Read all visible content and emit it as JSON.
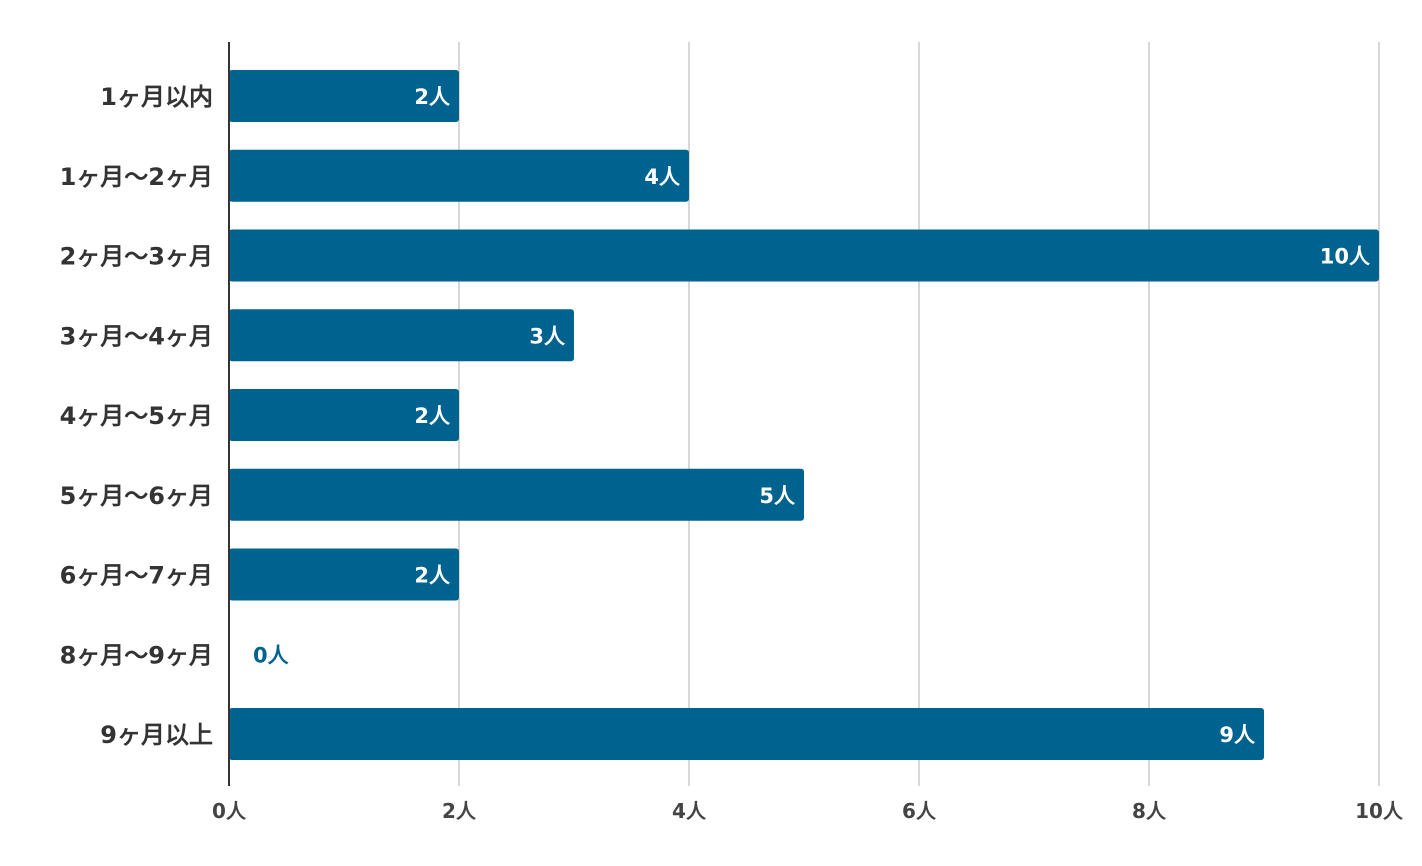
{
  "chart_data": {
    "type": "bar",
    "orientation": "horizontal",
    "categories": [
      "1ヶ月以内",
      "1ヶ月〜2ヶ月",
      "2ヶ月〜3ヶ月",
      "3ヶ月〜4ヶ月",
      "4ヶ月〜5ヶ月",
      "5ヶ月〜6ヶ月",
      "6ヶ月〜7ヶ月",
      "8ヶ月〜9ヶ月",
      "9ヶ月以上"
    ],
    "values": [
      2,
      4,
      10,
      3,
      2,
      5,
      2,
      0,
      9
    ],
    "data_labels": [
      "2人",
      "4人",
      "10人",
      "3人",
      "2人",
      "5人",
      "2人",
      "0人",
      "9人"
    ],
    "title": "",
    "xlabel": "",
    "ylabel": "",
    "xlim": [
      0,
      10
    ],
    "x_ticks": [
      0,
      2,
      4,
      6,
      8,
      10
    ],
    "x_tick_labels": [
      "0人",
      "2人",
      "4人",
      "6人",
      "8人",
      "10人"
    ],
    "grid": true,
    "legend": "none",
    "colors": {
      "bar": "#00628f",
      "grid": "#cccccc",
      "axis": "#333333",
      "label_inside": "#ffffff",
      "label_outside": "#00628f"
    }
  }
}
